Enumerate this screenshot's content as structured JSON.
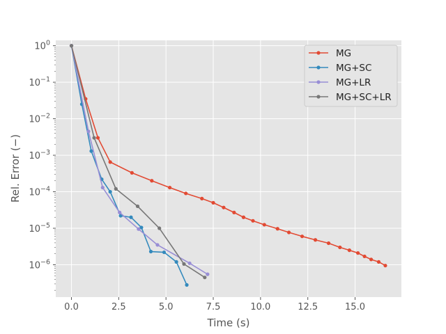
{
  "chart_data": {
    "type": "line",
    "title": "",
    "xlabel": "Time (s)",
    "ylabel": "Rel. Error (−)",
    "xlim": [
      -0.83,
      17.45
    ],
    "ylim": [
      1.3e-07,
      1.4
    ],
    "y_scale": "log",
    "grid": true,
    "legend_position": "top-right",
    "x_ticks": [
      0.0,
      2.5,
      5.0,
      7.5,
      10.0,
      12.5,
      15.0
    ],
    "x_tick_labels": [
      "0.0",
      "2.5",
      "5.0",
      "7.5",
      "10.0",
      "12.5",
      "15.0"
    ],
    "y_tick_exponents": [
      0,
      -1,
      -2,
      -3,
      -4,
      -5,
      -6
    ],
    "y_tick_labels": [
      {
        "base": "10",
        "exp": "0"
      },
      {
        "base": "10",
        "exp": "−1"
      },
      {
        "base": "10",
        "exp": "−2"
      },
      {
        "base": "10",
        "exp": "−3"
      },
      {
        "base": "10",
        "exp": "−4"
      },
      {
        "base": "10",
        "exp": "−5"
      },
      {
        "base": "10",
        "exp": "−6"
      }
    ],
    "series": [
      {
        "name": "MG",
        "color": "#E24A33",
        "x": [
          0.0,
          0.75,
          1.4,
          2.05,
          3.2,
          4.25,
          5.2,
          6.05,
          6.9,
          7.5,
          8.05,
          8.6,
          9.1,
          9.6,
          10.2,
          10.9,
          11.5,
          12.2,
          12.9,
          13.6,
          14.2,
          14.7,
          15.15,
          15.5,
          15.85,
          16.25,
          16.6
        ],
        "y": [
          1.0,
          0.035,
          0.003,
          0.00065,
          0.00033,
          0.0002,
          0.00013,
          9e-05,
          6.5e-05,
          5e-05,
          3.7e-05,
          2.7e-05,
          2e-05,
          1.6e-05,
          1.25e-05,
          9.7e-06,
          7.7e-06,
          6e-06,
          4.8e-06,
          3.9e-06,
          3e-06,
          2.5e-06,
          2.1e-06,
          1.7e-06,
          1.4e-06,
          1.2e-06,
          9.5e-07
        ]
      },
      {
        "name": "MG+SC",
        "color": "#348ABD",
        "x": [
          0.0,
          0.55,
          1.05,
          1.6,
          2.05,
          2.6,
          3.15,
          3.7,
          4.2,
          4.9,
          5.55,
          6.1
        ],
        "y": [
          1.0,
          0.025,
          0.0013,
          0.00022,
          0.0001,
          2.2e-05,
          2e-05,
          1.05e-05,
          2.3e-06,
          2.2e-06,
          1.2e-06,
          2.8e-07
        ]
      },
      {
        "name": "MG+LR",
        "color": "#988ED5",
        "x": [
          0.0,
          0.9,
          1.65,
          2.55,
          3.55,
          4.55,
          6.25,
          7.2
        ],
        "y": [
          1.0,
          0.0045,
          0.00013,
          2.7e-05,
          9.5e-06,
          3.5e-06,
          1.1e-06,
          5.5e-07
        ]
      },
      {
        "name": "MG+SC+LR",
        "color": "#777777",
        "x": [
          0.0,
          1.2,
          2.35,
          3.5,
          4.65,
          5.95,
          7.05
        ],
        "y": [
          1.0,
          0.003,
          0.00012,
          4e-05,
          1e-05,
          1.05e-06,
          4.5e-07
        ]
      }
    ]
  }
}
